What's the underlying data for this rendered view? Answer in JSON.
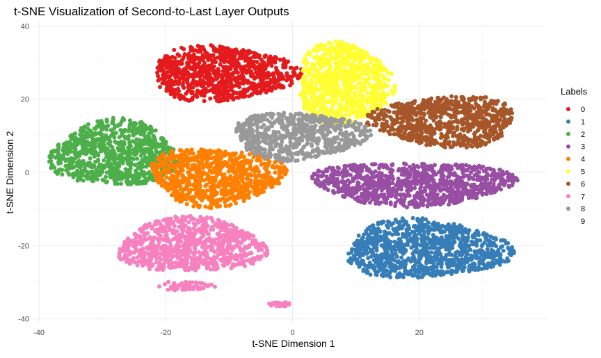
{
  "chart_data": {
    "type": "scatter",
    "title": "t-SNE Visualization of Second-to-Last Layer Outputs",
    "xlabel": "t-SNE Dimension 1",
    "ylabel": "t-SNE Dimension 2",
    "xlim": [
      -41,
      40
    ],
    "ylim": [
      -41,
      41
    ],
    "xticks": [
      -40,
      -20,
      0,
      20
    ],
    "yticks": [
      -40,
      -20,
      0,
      20,
      40
    ],
    "grid": true,
    "legend": {
      "title": "Labels",
      "position": "right"
    },
    "series": [
      {
        "name": "0",
        "color": "#e41a1c",
        "clusters": [
          {
            "cx": -11,
            "cy": 27,
            "rx": 11.5,
            "ry": 7.5
          }
        ]
      },
      {
        "name": "1",
        "color": "#377eb8",
        "clusters": [
          {
            "cx": 21,
            "cy": -21,
            "rx": 13,
            "ry": 8
          }
        ]
      },
      {
        "name": "2",
        "color": "#4daf4a",
        "clusters": [
          {
            "cx": -28,
            "cy": 5,
            "rx": 10,
            "ry": 9
          }
        ]
      },
      {
        "name": "3",
        "color": "#984ea3",
        "clusters": [
          {
            "cx": 19,
            "cy": -3,
            "rx": 16,
            "ry": 6
          }
        ]
      },
      {
        "name": "4",
        "color": "#ff7f00",
        "clusters": [
          {
            "cx": -12,
            "cy": -1,
            "rx": 10.5,
            "ry": 8
          }
        ]
      },
      {
        "name": "5",
        "color": "#ffff33",
        "clusters": [
          {
            "cx": 8,
            "cy": 24,
            "rx": 7.5,
            "ry": 11.5
          }
        ]
      },
      {
        "name": "6",
        "color": "#a65628",
        "clusters": [
          {
            "cx": 24,
            "cy": 14,
            "rx": 11.5,
            "ry": 7
          }
        ]
      },
      {
        "name": "7",
        "color": "#f781bf",
        "clusters": [
          {
            "cx": -16,
            "cy": -20,
            "rx": 11.5,
            "ry": 7.5
          },
          {
            "cx": -17,
            "cy": -31,
            "rx": 4.5,
            "ry": 1.2
          },
          {
            "cx": -2,
            "cy": -36,
            "rx": 1.8,
            "ry": 0.6
          }
        ]
      },
      {
        "name": "8",
        "color": "#999999",
        "clusters": [
          {
            "cx": 1,
            "cy": 10,
            "rx": 10.5,
            "ry": 6.5
          }
        ]
      },
      {
        "name": "9",
        "color": "#ffffff",
        "clusters": []
      }
    ]
  }
}
